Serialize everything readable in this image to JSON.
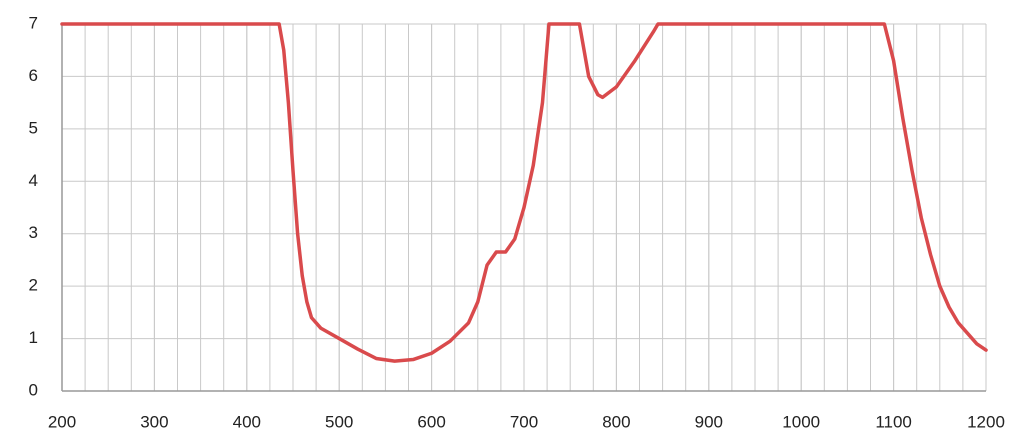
{
  "chart_data": {
    "type": "line",
    "x": [
      200,
      435,
      440,
      445,
      450,
      455,
      460,
      465,
      470,
      480,
      500,
      520,
      540,
      560,
      580,
      600,
      620,
      640,
      650,
      660,
      670,
      680,
      690,
      700,
      710,
      720,
      727,
      760,
      765,
      770,
      780,
      785,
      800,
      820,
      840,
      845,
      1090,
      1100,
      1110,
      1120,
      1130,
      1140,
      1150,
      1160,
      1170,
      1180,
      1190,
      1200
    ],
    "values": [
      7,
      7,
      6.5,
      5.5,
      4.2,
      3,
      2.2,
      1.7,
      1.4,
      1.2,
      1.0,
      0.8,
      0.62,
      0.57,
      0.6,
      0.72,
      0.95,
      1.3,
      1.7,
      2.4,
      2.65,
      2.65,
      2.9,
      3.5,
      4.3,
      5.5,
      7,
      7,
      6.5,
      6.0,
      5.65,
      5.6,
      5.8,
      6.3,
      6.85,
      7,
      7,
      6.3,
      5.2,
      4.2,
      3.3,
      2.6,
      2.0,
      1.6,
      1.3,
      1.1,
      0.9,
      0.78
    ],
    "color": "#d94a4c",
    "xlim": [
      200,
      1200
    ],
    "xticks": [
      200,
      300,
      400,
      500,
      600,
      700,
      800,
      900,
      1000,
      1100,
      1200
    ],
    "x_minor_step": 25,
    "ylim": [
      0,
      7
    ],
    "yticks": [
      0,
      1,
      2,
      3,
      4,
      5,
      6,
      7
    ],
    "grid": true
  }
}
